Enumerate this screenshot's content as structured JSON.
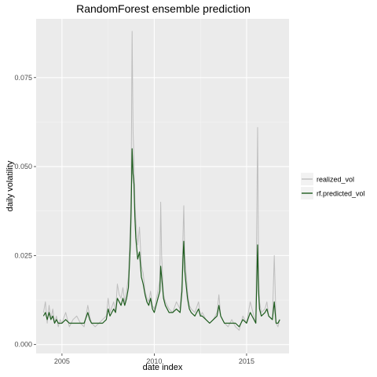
{
  "chart_data": {
    "type": "line",
    "title": "RandomForest ensemble prediction",
    "xlabel": "date index",
    "ylabel": "daily volatility",
    "xlim": [
      2003.6,
      2017.3
    ],
    "ylim": [
      -0.0025,
      0.0915
    ],
    "x_ticks": [
      {
        "value": 2005,
        "label": "2005"
      },
      {
        "value": 2010,
        "label": "2010"
      },
      {
        "value": 2015,
        "label": "2015"
      }
    ],
    "y_ticks": [
      {
        "value": 0.0,
        "label": "0.000"
      },
      {
        "value": 0.025,
        "label": "0.025"
      },
      {
        "value": 0.05,
        "label": "0.050"
      },
      {
        "value": 0.075,
        "label": "0.075"
      }
    ],
    "grid": true,
    "legend_position": "right",
    "series": [
      {
        "name": "realized_vol",
        "color": "#bebebe",
        "x": [
          2004.0,
          2004.1,
          2004.2,
          2004.3,
          2004.4,
          2004.5,
          2004.6,
          2004.7,
          2004.8,
          2004.9,
          2005.0,
          2005.2,
          2005.4,
          2005.6,
          2005.8,
          2006.0,
          2006.2,
          2006.4,
          2006.5,
          2006.6,
          2006.8,
          2007.0,
          2007.2,
          2007.4,
          2007.5,
          2007.6,
          2007.8,
          2007.9,
          2008.0,
          2008.1,
          2008.2,
          2008.3,
          2008.4,
          2008.5,
          2008.6,
          2008.7,
          2008.75,
          2008.8,
          2008.85,
          2008.9,
          2008.95,
          2009.0,
          2009.1,
          2009.2,
          2009.3,
          2009.4,
          2009.5,
          2009.6,
          2009.7,
          2009.8,
          2009.9,
          2010.0,
          2010.2,
          2010.3,
          2010.35,
          2010.4,
          2010.5,
          2010.6,
          2010.8,
          2011.0,
          2011.2,
          2011.4,
          2011.5,
          2011.55,
          2011.6,
          2011.65,
          2011.7,
          2011.8,
          2011.9,
          2012.0,
          2012.2,
          2012.4,
          2012.5,
          2012.6,
          2012.8,
          2013.0,
          2013.2,
          2013.4,
          2013.5,
          2013.6,
          2013.8,
          2014.0,
          2014.2,
          2014.4,
          2014.6,
          2014.8,
          2015.0,
          2015.2,
          2015.4,
          2015.5,
          2015.6,
          2015.65,
          2015.7,
          2015.8,
          2016.0,
          2016.1,
          2016.2,
          2016.4,
          2016.5,
          2016.6,
          2016.7,
          2016.8
        ],
        "values": [
          0.009,
          0.012,
          0.006,
          0.011,
          0.007,
          0.01,
          0.006,
          0.008,
          0.005,
          0.007,
          0.006,
          0.009,
          0.005,
          0.007,
          0.008,
          0.006,
          0.005,
          0.011,
          0.008,
          0.006,
          0.005,
          0.006,
          0.007,
          0.008,
          0.013,
          0.009,
          0.012,
          0.009,
          0.017,
          0.014,
          0.013,
          0.016,
          0.012,
          0.015,
          0.019,
          0.034,
          0.045,
          0.088,
          0.06,
          0.052,
          0.04,
          0.035,
          0.028,
          0.033,
          0.022,
          0.02,
          0.015,
          0.013,
          0.012,
          0.015,
          0.011,
          0.01,
          0.015,
          0.018,
          0.04,
          0.025,
          0.014,
          0.012,
          0.01,
          0.009,
          0.012,
          0.01,
          0.018,
          0.03,
          0.039,
          0.025,
          0.022,
          0.015,
          0.011,
          0.01,
          0.009,
          0.012,
          0.008,
          0.009,
          0.007,
          0.006,
          0.007,
          0.009,
          0.014,
          0.008,
          0.006,
          0.005,
          0.007,
          0.005,
          0.004,
          0.008,
          0.006,
          0.012,
          0.008,
          0.006,
          0.061,
          0.02,
          0.012,
          0.009,
          0.01,
          0.012,
          0.008,
          0.007,
          0.025,
          0.006,
          0.005,
          0.007
        ]
      },
      {
        "name": "rf.predicted_vol",
        "color": "#1e5c1e",
        "x": [
          2004.0,
          2004.1,
          2004.2,
          2004.3,
          2004.4,
          2004.5,
          2004.6,
          2004.7,
          2004.8,
          2004.9,
          2005.0,
          2005.2,
          2005.4,
          2005.6,
          2005.8,
          2006.0,
          2006.2,
          2006.4,
          2006.5,
          2006.6,
          2006.8,
          2007.0,
          2007.2,
          2007.4,
          2007.5,
          2007.6,
          2007.8,
          2007.9,
          2008.0,
          2008.1,
          2008.2,
          2008.3,
          2008.4,
          2008.5,
          2008.6,
          2008.7,
          2008.75,
          2008.8,
          2008.85,
          2008.9,
          2008.95,
          2009.0,
          2009.1,
          2009.2,
          2009.3,
          2009.4,
          2009.5,
          2009.6,
          2009.7,
          2009.8,
          2009.9,
          2010.0,
          2010.2,
          2010.3,
          2010.35,
          2010.4,
          2010.5,
          2010.6,
          2010.8,
          2011.0,
          2011.2,
          2011.4,
          2011.5,
          2011.55,
          2011.6,
          2011.65,
          2011.7,
          2011.8,
          2011.9,
          2012.0,
          2012.2,
          2012.4,
          2012.5,
          2012.6,
          2012.8,
          2013.0,
          2013.2,
          2013.4,
          2013.5,
          2013.6,
          2013.8,
          2014.0,
          2014.2,
          2014.4,
          2014.6,
          2014.8,
          2015.0,
          2015.2,
          2015.4,
          2015.5,
          2015.6,
          2015.65,
          2015.7,
          2015.8,
          2016.0,
          2016.1,
          2016.2,
          2016.4,
          2016.5,
          2016.6,
          2016.7,
          2016.8
        ],
        "values": [
          0.008,
          0.009,
          0.007,
          0.009,
          0.007,
          0.008,
          0.006,
          0.007,
          0.006,
          0.006,
          0.006,
          0.007,
          0.006,
          0.006,
          0.006,
          0.006,
          0.006,
          0.009,
          0.007,
          0.006,
          0.006,
          0.006,
          0.006,
          0.007,
          0.01,
          0.008,
          0.01,
          0.009,
          0.013,
          0.012,
          0.011,
          0.013,
          0.011,
          0.013,
          0.016,
          0.028,
          0.038,
          0.055,
          0.048,
          0.045,
          0.036,
          0.03,
          0.024,
          0.026,
          0.019,
          0.017,
          0.014,
          0.012,
          0.011,
          0.013,
          0.01,
          0.009,
          0.013,
          0.015,
          0.022,
          0.019,
          0.013,
          0.011,
          0.009,
          0.009,
          0.01,
          0.009,
          0.015,
          0.024,
          0.029,
          0.021,
          0.018,
          0.013,
          0.01,
          0.009,
          0.008,
          0.01,
          0.008,
          0.008,
          0.007,
          0.006,
          0.007,
          0.008,
          0.011,
          0.008,
          0.006,
          0.006,
          0.006,
          0.006,
          0.005,
          0.007,
          0.006,
          0.009,
          0.007,
          0.006,
          0.028,
          0.015,
          0.01,
          0.008,
          0.009,
          0.01,
          0.008,
          0.007,
          0.012,
          0.006,
          0.006,
          0.007
        ]
      }
    ]
  }
}
